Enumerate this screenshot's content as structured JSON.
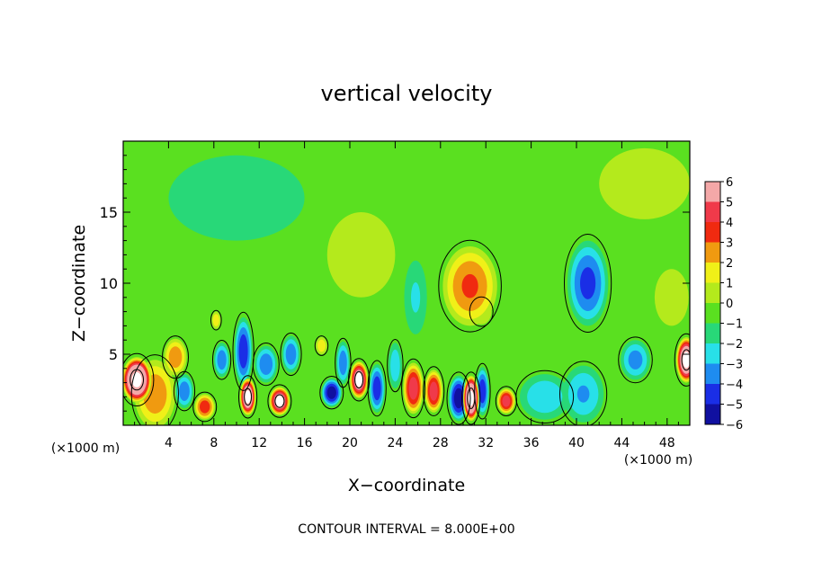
{
  "chart_data": {
    "type": "heatmap",
    "title": "vertical velocity",
    "xlabel": "X−coordinate",
    "ylabel": "Z−coordinate",
    "x_unit": "(×1000 m)",
    "y_unit": "(×1000 m)",
    "footer": "CONTOUR INTERVAL = 8.000E+00",
    "xlim": [
      0,
      50
    ],
    "ylim": [
      0,
      20
    ],
    "xticks": [
      4,
      8,
      12,
      16,
      20,
      24,
      28,
      32,
      36,
      40,
      44,
      48
    ],
    "xtick_labels": [
      "4",
      "8",
      "12",
      "16",
      "20",
      "24",
      "28",
      "32",
      "36",
      "40",
      "44",
      "48"
    ],
    "yticks": [
      5,
      10,
      15
    ],
    "ytick_labels": [
      "5",
      "10",
      "15"
    ],
    "colorbar": {
      "min": -6,
      "max": 6,
      "levels": [
        -6,
        -5,
        -4,
        -3,
        -2,
        -1,
        0,
        1,
        2,
        3,
        4,
        5,
        6
      ],
      "labels": [
        "−6",
        "−5",
        "−4",
        "−3",
        "−2",
        "−1",
        "0",
        "1",
        "2",
        "3",
        "4",
        "5",
        "6"
      ],
      "colors": [
        "#7a00b8",
        "#1010a0",
        "#1a2ee6",
        "#1e8cf0",
        "#28e0e8",
        "#28d878",
        "#5ae020",
        "#b4ea1c",
        "#f0f018",
        "#f09a10",
        "#f02a10",
        "#f03a4a",
        "#f4a8a8"
      ]
    },
    "background_color": "#5ae020",
    "features": [
      {
        "x": 1.2,
        "z": 3.2,
        "sx": 1.3,
        "sz": 1.6,
        "w": 9
      },
      {
        "x": 2.8,
        "z": 2.2,
        "sx": 1.8,
        "sz": 2.4,
        "w": 3
      },
      {
        "x": 4.6,
        "z": 4.8,
        "sx": 1.0,
        "sz": 1.3,
        "w": 3
      },
      {
        "x": 5.4,
        "z": 2.4,
        "sx": 0.8,
        "sz": 1.2,
        "w": -3
      },
      {
        "x": 7.2,
        "z": 1.3,
        "sx": 0.9,
        "sz": 0.9,
        "w": 4
      },
      {
        "x": 8.2,
        "z": 7.4,
        "sx": 0.4,
        "sz": 0.6,
        "w": 2
      },
      {
        "x": 8.7,
        "z": 4.6,
        "sx": 0.7,
        "sz": 1.2,
        "w": -3
      },
      {
        "x": 10.6,
        "z": 5.2,
        "sx": 0.8,
        "sz": 2.4,
        "w": -4
      },
      {
        "x": 11.0,
        "z": 2.0,
        "sx": 0.7,
        "sz": 1.3,
        "w": 8
      },
      {
        "x": 12.6,
        "z": 4.3,
        "sx": 1.0,
        "sz": 1.3,
        "w": -3
      },
      {
        "x": 13.8,
        "z": 1.7,
        "sx": 0.9,
        "sz": 1.0,
        "w": 7
      },
      {
        "x": 14.8,
        "z": 5.0,
        "sx": 0.8,
        "sz": 1.3,
        "w": -3
      },
      {
        "x": 17.5,
        "z": 5.6,
        "sx": 0.5,
        "sz": 0.6,
        "w": 2
      },
      {
        "x": 18.4,
        "z": 2.3,
        "sx": 0.9,
        "sz": 1.0,
        "w": -5
      },
      {
        "x": 19.4,
        "z": 4.4,
        "sx": 0.6,
        "sz": 1.5,
        "w": -3
      },
      {
        "x": 20.8,
        "z": 3.2,
        "sx": 0.8,
        "sz": 1.3,
        "w": 7
      },
      {
        "x": 22.4,
        "z": 2.6,
        "sx": 0.7,
        "sz": 1.7,
        "w": -4
      },
      {
        "x": 24.0,
        "z": 4.2,
        "sx": 0.6,
        "sz": 1.6,
        "w": -2
      },
      {
        "x": 25.6,
        "z": 2.6,
        "sx": 0.9,
        "sz": 1.8,
        "w": 5
      },
      {
        "x": 27.4,
        "z": 2.4,
        "sx": 0.8,
        "sz": 1.5,
        "w": 5
      },
      {
        "x": 25.8,
        "z": 9.0,
        "sx": 1.0,
        "sz": 2.6,
        "w": -1.2
      },
      {
        "x": 29.6,
        "z": 1.9,
        "sx": 0.9,
        "sz": 1.6,
        "w": -5
      },
      {
        "x": 30.7,
        "z": 1.9,
        "sx": 0.7,
        "sz": 1.6,
        "w": 9
      },
      {
        "x": 31.7,
        "z": 2.4,
        "sx": 0.6,
        "sz": 1.7,
        "w": -4
      },
      {
        "x": 30.6,
        "z": 9.8,
        "sx": 2.4,
        "sz": 2.8,
        "w": 3.3
      },
      {
        "x": 31.6,
        "z": 8.0,
        "sx": 0.9,
        "sz": 0.9,
        "w": 1.7
      },
      {
        "x": 33.8,
        "z": 1.7,
        "sx": 0.8,
        "sz": 0.9,
        "w": 5
      },
      {
        "x": 37.2,
        "z": 2.0,
        "sx": 2.2,
        "sz": 1.6,
        "w": -2
      },
      {
        "x": 41.0,
        "z": 10.0,
        "sx": 1.8,
        "sz": 3.0,
        "w": -3.5
      },
      {
        "x": 40.6,
        "z": 2.2,
        "sx": 1.8,
        "sz": 2.0,
        "w": -2.2
      },
      {
        "x": 45.2,
        "z": 4.6,
        "sx": 1.3,
        "sz": 1.4,
        "w": -2.6
      },
      {
        "x": 48.4,
        "z": 9.0,
        "sx": 1.5,
        "sz": 2.0,
        "w": 0.8
      },
      {
        "x": 49.7,
        "z": 4.6,
        "sx": 0.9,
        "sz": 1.6,
        "w": 8
      },
      {
        "x": 10.0,
        "z": 16.0,
        "sx": 6.0,
        "sz": 3.0,
        "w": -0.6
      },
      {
        "x": 21.0,
        "z": 12.0,
        "sx": 3.0,
        "sz": 3.0,
        "w": 0.7
      },
      {
        "x": 46.0,
        "z": 17.0,
        "sx": 4.0,
        "sz": 2.5,
        "w": 0.6
      }
    ]
  }
}
